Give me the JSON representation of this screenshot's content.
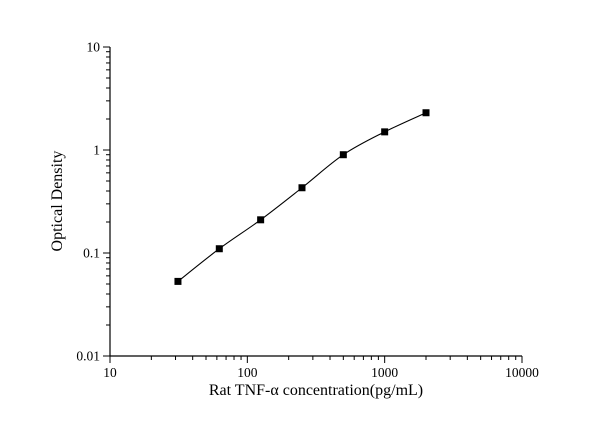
{
  "chart_data": {
    "type": "scatter",
    "title": "",
    "xlabel": "Rat TNF-α concentration(pg/mL)",
    "ylabel": "Optical Density",
    "xscale": "log",
    "yscale": "log",
    "xlim": [
      10,
      10000
    ],
    "ylim": [
      0.01,
      10
    ],
    "x_ticks": [
      10,
      100,
      1000,
      10000
    ],
    "y_ticks": [
      0.01,
      0.1,
      1,
      10
    ],
    "x": [
      31.25,
      62.5,
      125,
      250,
      500,
      1000,
      2000
    ],
    "y": [
      0.053,
      0.11,
      0.21,
      0.43,
      0.9,
      1.5,
      2.3
    ],
    "marker": "square",
    "marker_color": "#000000",
    "line_color": "#000000",
    "axis_color": "#000000",
    "background_color": "#ffffff",
    "grid": false,
    "legend": null
  }
}
